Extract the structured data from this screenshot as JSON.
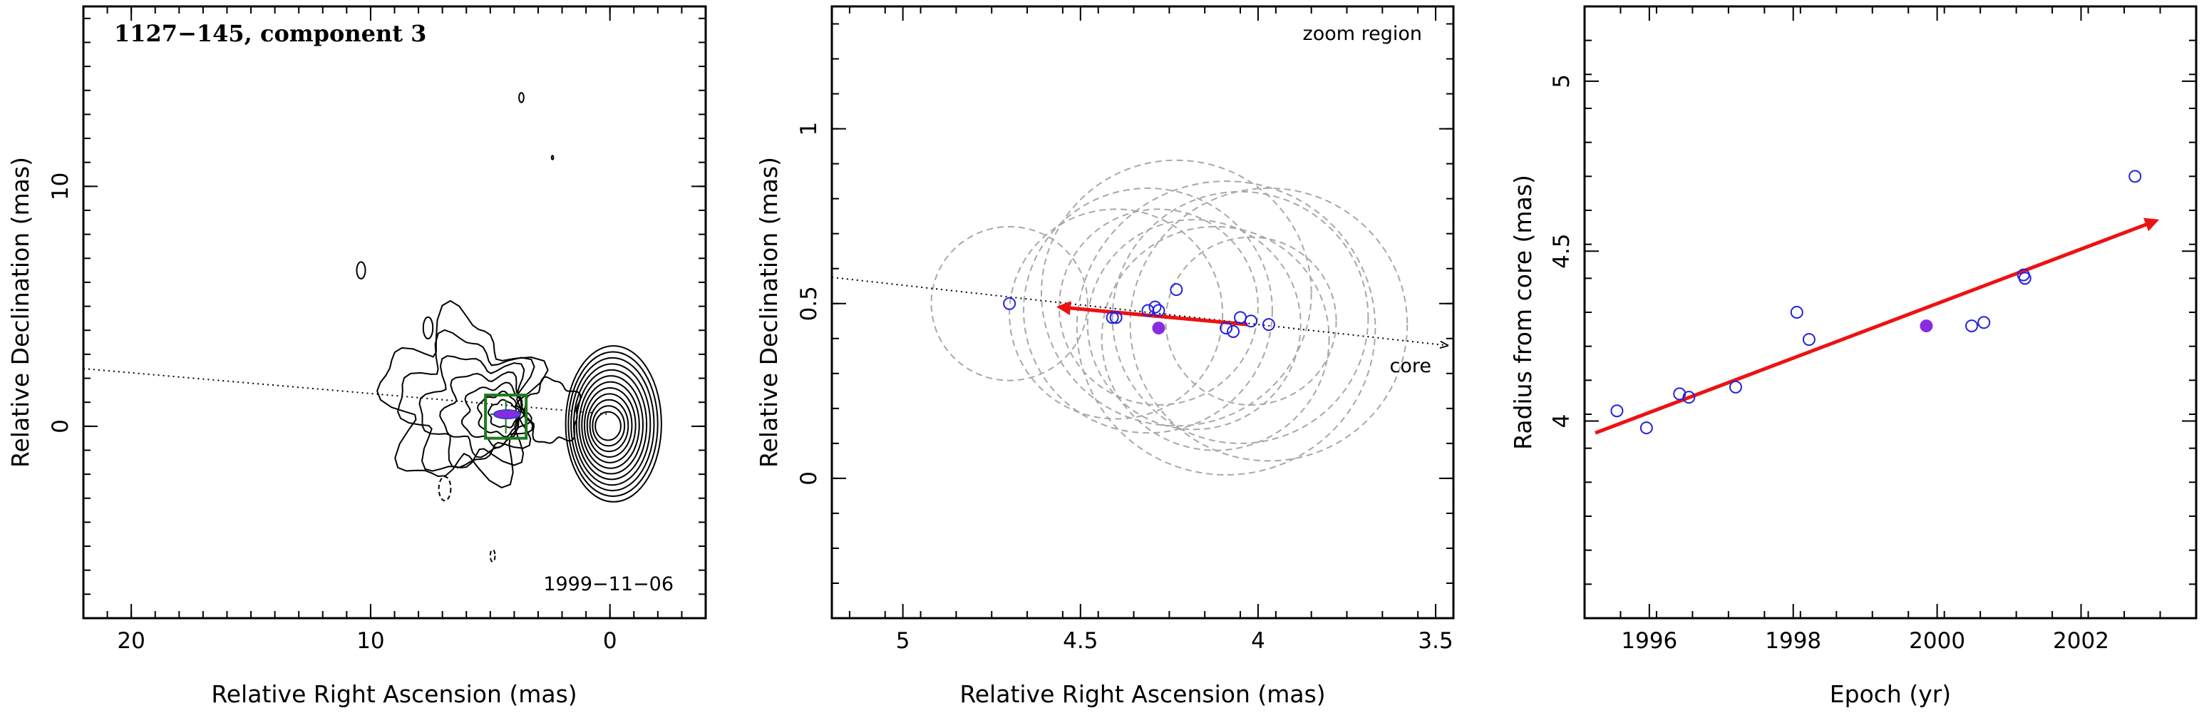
{
  "chart_data": [
    {
      "type": "contour",
      "title": "1127−145, component 3",
      "date_label": "1999−11−06",
      "xlabel": "Relative Right Ascension (mas)",
      "ylabel": "Relative Declination (mas)",
      "xlim": [
        22,
        -4
      ],
      "ylim": [
        -8,
        17.5
      ],
      "xticks": [
        20,
        10,
        0
      ],
      "yticks": [
        0,
        10
      ],
      "jet_axis_line": [
        [
          22,
          2.4
        ],
        [
          0,
          0.5
        ]
      ],
      "component_position": [
        4.3,
        0.5
      ],
      "zoom_box": {
        "x": [
          3.5,
          5.2
        ],
        "y": [
          -0.5,
          1.3
        ]
      },
      "core_contour_levels": 12,
      "colors": {
        "contours": "#000000",
        "zoom_box": "#1e7a1e",
        "component": "#8a2be2"
      }
    },
    {
      "type": "scatter",
      "corner_label": "zoom region",
      "core_label": "core",
      "xlabel": "Relative Right Ascension (mas)",
      "ylabel": "Relative Declination (mas)",
      "xlim": [
        5.2,
        3.45
      ],
      "ylim": [
        -0.4,
        1.35
      ],
      "xticks": [
        5,
        4.5,
        4,
        3.5
      ],
      "yticks": [
        0,
        0.5,
        1
      ],
      "points_open": [
        {
          "x": 4.7,
          "y": 0.5
        },
        {
          "x": 4.41,
          "y": 0.46
        },
        {
          "x": 4.4,
          "y": 0.46
        },
        {
          "x": 4.31,
          "y": 0.48
        },
        {
          "x": 4.29,
          "y": 0.49
        },
        {
          "x": 4.28,
          "y": 0.48
        },
        {
          "x": 4.23,
          "y": 0.54
        },
        {
          "x": 4.09,
          "y": 0.43
        },
        {
          "x": 4.07,
          "y": 0.42
        },
        {
          "x": 4.05,
          "y": 0.46
        },
        {
          "x": 4.02,
          "y": 0.45
        },
        {
          "x": 3.97,
          "y": 0.44
        }
      ],
      "point_filled": {
        "x": 4.28,
        "y": 0.43
      },
      "beam_circles": [
        {
          "cx": 4.7,
          "cy": 0.5,
          "r": 0.22
        },
        {
          "cx": 4.4,
          "cy": 0.47,
          "r": 0.3
        },
        {
          "cx": 4.31,
          "cy": 0.48,
          "r": 0.35
        },
        {
          "cx": 4.28,
          "cy": 0.49,
          "r": 0.28
        },
        {
          "cx": 4.23,
          "cy": 0.53,
          "r": 0.38
        },
        {
          "cx": 4.18,
          "cy": 0.44,
          "r": 0.3
        },
        {
          "cx": 4.09,
          "cy": 0.43,
          "r": 0.42
        },
        {
          "cx": 4.05,
          "cy": 0.46,
          "r": 0.36
        },
        {
          "cx": 4.02,
          "cy": 0.45,
          "r": 0.24
        },
        {
          "cx": 3.97,
          "cy": 0.44,
          "r": 0.39
        },
        {
          "cx": 4.12,
          "cy": 0.4,
          "r": 0.32
        }
      ],
      "jet_axis_line": [
        [
          5.2,
          0.575
        ],
        [
          3.45,
          0.38
        ]
      ],
      "velocity_arrow": {
        "from": [
          4.03,
          0.44
        ],
        "to": [
          4.56,
          0.49
        ]
      },
      "colors": {
        "points": "#2222dd",
        "filled_point": "#8a2be2",
        "arrow": "#ee1111",
        "circles": "#a8a8a8"
      }
    },
    {
      "type": "scatter",
      "xlabel": "Epoch (yr)",
      "ylabel": "Radius from core (mas)",
      "xlim": [
        1995.1,
        2003.6
      ],
      "ylim": [
        3.42,
        5.22
      ],
      "xticks": [
        1996,
        1998,
        2000,
        2002
      ],
      "yticks": [
        4,
        4.5,
        5
      ],
      "points_open": [
        {
          "x": 1995.55,
          "y": 4.03
        },
        {
          "x": 1995.96,
          "y": 3.98
        },
        {
          "x": 1996.42,
          "y": 4.08
        },
        {
          "x": 1996.55,
          "y": 4.07
        },
        {
          "x": 1997.2,
          "y": 4.1
        },
        {
          "x": 1998.05,
          "y": 4.32
        },
        {
          "x": 1998.22,
          "y": 4.24
        },
        {
          "x": 2000.48,
          "y": 4.28
        },
        {
          "x": 2000.65,
          "y": 4.29
        },
        {
          "x": 2001.2,
          "y": 4.43
        },
        {
          "x": 2001.22,
          "y": 4.42
        },
        {
          "x": 2002.75,
          "y": 4.72
        }
      ],
      "point_filled": {
        "x": 1999.85,
        "y": 4.28
      },
      "fit_arrow": {
        "from": [
          1995.25,
          3.965
        ],
        "to": [
          2003.05,
          4.59
        ]
      },
      "colors": {
        "points": "#2222dd",
        "filled_point": "#8a2be2",
        "arrow": "#ee1111"
      }
    }
  ]
}
